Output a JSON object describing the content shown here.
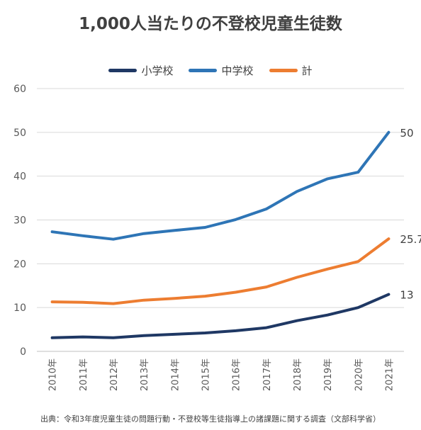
{
  "title": "1,000人当たりの不登校児童生徒数",
  "source": "出典：令和3年度児童生徒の問題行動・不登校等生徒指導上の諸課題に関する調査（文部科学省）",
  "chart_data": {
    "type": "line",
    "title": "1,000人当たりの不登校児童生徒数",
    "x": [
      "2010年",
      "2011年",
      "2012年",
      "2013年",
      "2014年",
      "2015年",
      "2016年",
      "2017年",
      "2018年",
      "2019年",
      "2020年",
      "2021年"
    ],
    "ylim": [
      0,
      60
    ],
    "yticks": [
      0,
      10,
      20,
      30,
      40,
      50,
      60
    ],
    "grid": true,
    "legend_position": "top",
    "series": [
      {
        "name": "小学校",
        "color": "#1f3864",
        "values": [
          3.1,
          3.3,
          3.1,
          3.6,
          3.9,
          4.2,
          4.7,
          5.4,
          7.0,
          8.3,
          10.0,
          13
        ],
        "end_label": "13"
      },
      {
        "name": "中学校",
        "color": "#2e75b6",
        "values": [
          27.3,
          26.4,
          25.6,
          26.9,
          27.6,
          28.3,
          30.1,
          32.5,
          36.5,
          39.4,
          40.9,
          50
        ],
        "end_label": "50"
      },
      {
        "name": "計",
        "color": "#ed7d31",
        "values": [
          11.3,
          11.2,
          10.9,
          11.7,
          12.1,
          12.6,
          13.5,
          14.7,
          16.9,
          18.8,
          20.5,
          25.7
        ],
        "end_label": "25.7"
      }
    ]
  }
}
